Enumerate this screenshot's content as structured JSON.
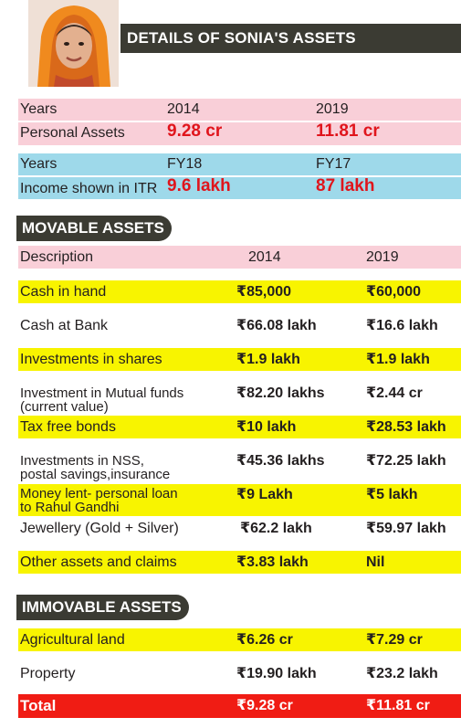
{
  "header": {
    "title": "DETAILS OF SONIA'S ASSETS"
  },
  "summary": {
    "personal_assets": {
      "label_years": "Years",
      "col1": "2014",
      "col2": "2019",
      "label": "Personal Assets",
      "val1": "9.28 cr",
      "val2": "11.81 cr"
    },
    "income": {
      "label_years": "Years",
      "col1": "FY18",
      "col2": "FY17",
      "label": "Income shown in ITR",
      "val1": "9.6 lakh",
      "val2": "87 lakh"
    }
  },
  "movable": {
    "title": "MOVABLE ASSETS",
    "columns": [
      "Description",
      "2014",
      "2019"
    ],
    "rows": [
      {
        "desc": "Cash in hand",
        "v2014": "₹85,000",
        "v2019": "₹60,000"
      },
      {
        "desc": "Cash at Bank",
        "v2014": "₹66.08 lakh",
        "v2019": "₹16.6 lakh"
      },
      {
        "desc": "Investments in shares",
        "v2014": "₹1.9 lakh",
        "v2019": "₹1.9 lakh"
      },
      {
        "desc": "Investment in Mutual funds",
        "desc2": "(current value)",
        "v2014": "₹82.20 lakhs",
        "v2019": "₹2.44 cr"
      },
      {
        "desc": "Tax free bonds",
        "v2014": "₹10 lakh",
        "v2019": "₹28.53 lakh"
      },
      {
        "desc": "Investments in NSS,",
        "desc2": "postal savings,insurance",
        "v2014": "₹45.36 lakhs",
        "v2019": "₹72.25 lakh"
      },
      {
        "desc": "Money lent- personal loan",
        "desc2": "to Rahul Gandhi",
        "v2014": "₹9 Lakh",
        "v2019": "₹5 lakh"
      },
      {
        "desc": "Jewellery (Gold + Silver)",
        "v2014": "₹62.2 lakh",
        "v2019": "₹59.97 lakh"
      },
      {
        "desc": "Other assets and claims",
        "v2014": "₹3.83 lakh",
        "v2019": "Nil"
      }
    ]
  },
  "immovable": {
    "title": "IMMOVABLE ASSETS",
    "rows": [
      {
        "desc": "Agricultural land",
        "v2014": "₹6.26 cr",
        "v2019": "₹7.29 cr"
      },
      {
        "desc": "Property",
        "v2014": "₹19.90 lakh",
        "v2019": "₹23.2 lakh"
      }
    ]
  },
  "total": {
    "label": "Total",
    "v2014": "₹9.28 cr",
    "v2019": "₹11.81 cr"
  },
  "colors": {
    "pink": "#f9cfd8",
    "blue": "#9ed9ea",
    "yellow": "#f8f400",
    "red": "#f01c14",
    "dark": "#3b3b33",
    "value_red": "#e0151c"
  }
}
